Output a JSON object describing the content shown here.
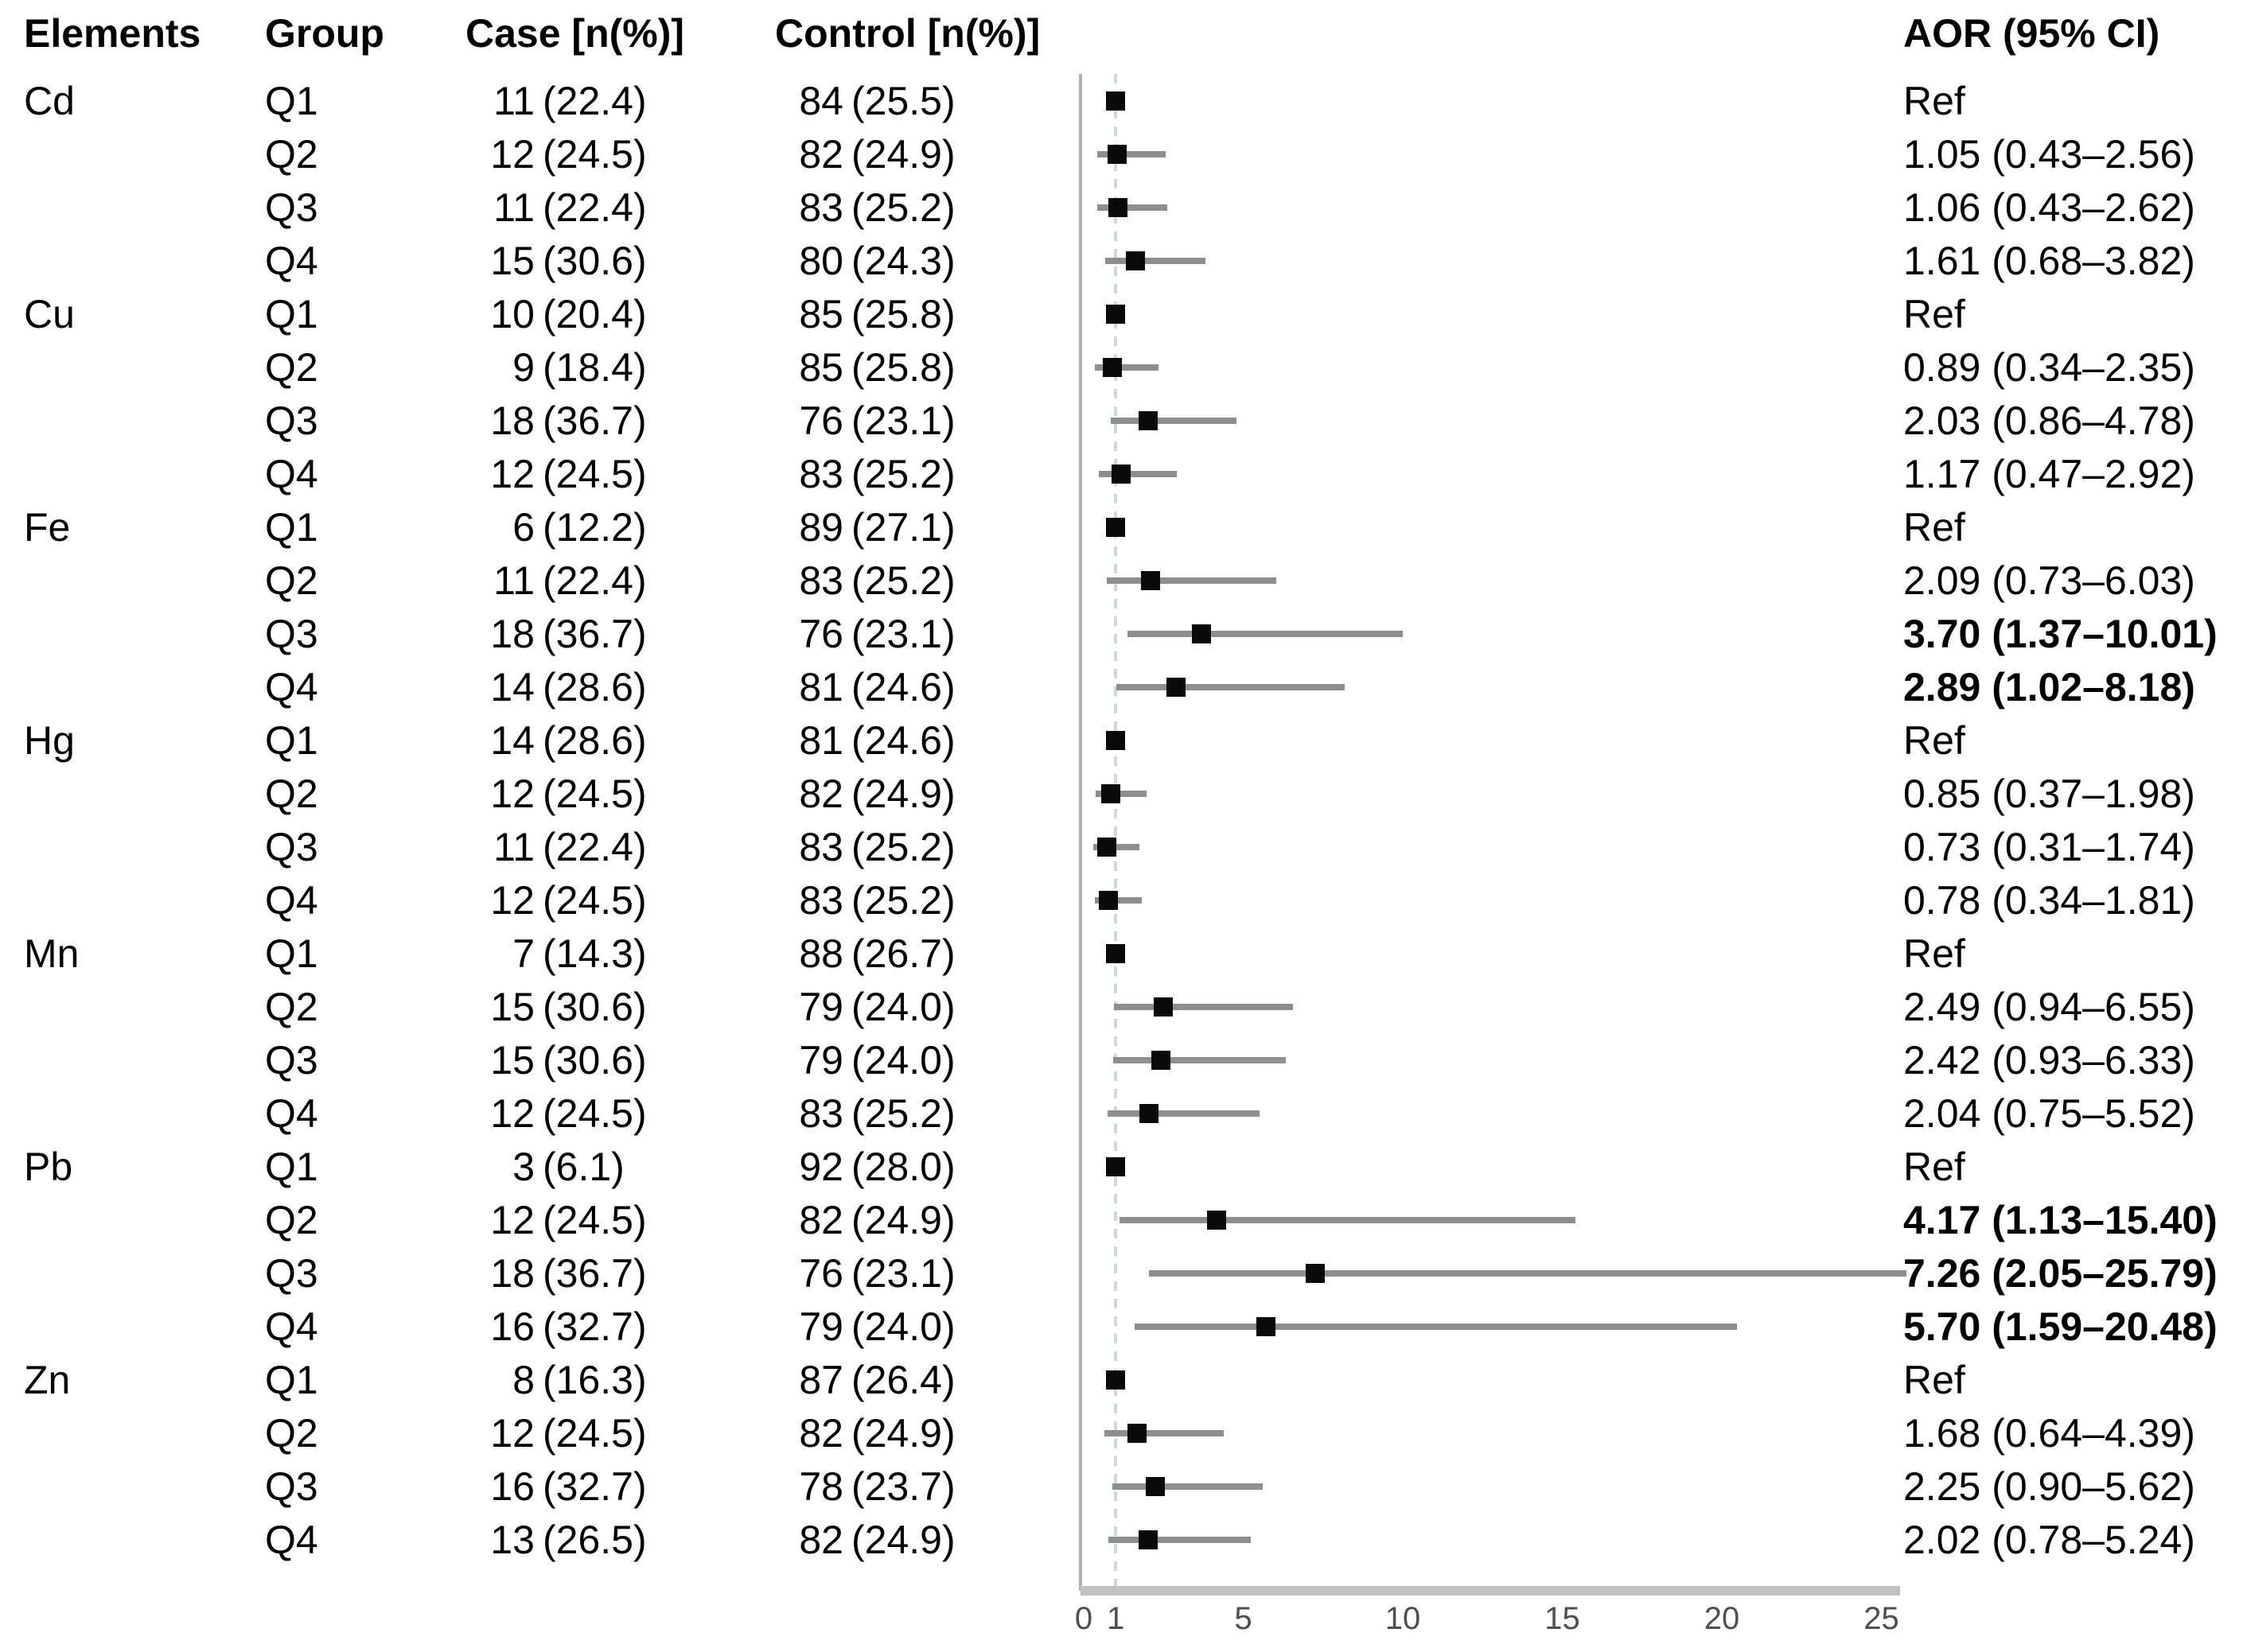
{
  "headers": {
    "elements": "Elements",
    "group": "Group",
    "case": "Case [n(%)]",
    "control": "Control [n(%)]",
    "aor": "AOR (95% CI)"
  },
  "colors": {
    "marker": "#0a0a0a",
    "ci_line": "#8e8e8e",
    "axis_spine": "#b0b0b0",
    "axis_bar": "#c2c2c2",
    "reference_line": "#ccd8da",
    "tick_text": "#4f4f4f",
    "text": "#000000",
    "background": "#ffffff"
  },
  "chart_data": {
    "type": "forest",
    "title": "",
    "xlabel": "",
    "x_axis": {
      "scale": "linear",
      "range": [
        0,
        25.6
      ],
      "tick_values": [
        0,
        1,
        5,
        10,
        15,
        20,
        25
      ],
      "tick_labels": [
        "0",
        "1",
        "5",
        "10",
        "15",
        "20",
        "25"
      ],
      "reference_line_value": 1,
      "grid": false
    },
    "legend": null,
    "columns": [
      "Elements",
      "Group",
      "Case [n(%)]",
      "Control [n(%)]",
      "AOR (95% CI)"
    ],
    "rows": [
      {
        "element": "Cd",
        "group": "Q1",
        "case_n": "11",
        "case_pct": "(22.4)",
        "control_n": "84",
        "control_pct": "(25.5)",
        "aor_label": "Ref",
        "aor": 1.0,
        "ci_low": null,
        "ci_high": null,
        "bold": false
      },
      {
        "element": "",
        "group": "Q2",
        "case_n": "12",
        "case_pct": "(24.5)",
        "control_n": "82",
        "control_pct": "(24.9)",
        "aor_label": "1.05 (0.43–2.56)",
        "aor": 1.05,
        "ci_low": 0.43,
        "ci_high": 2.56,
        "bold": false
      },
      {
        "element": "",
        "group": "Q3",
        "case_n": "11",
        "case_pct": "(22.4)",
        "control_n": "83",
        "control_pct": "(25.2)",
        "aor_label": "1.06 (0.43–2.62)",
        "aor": 1.06,
        "ci_low": 0.43,
        "ci_high": 2.62,
        "bold": false
      },
      {
        "element": "",
        "group": "Q4",
        "case_n": "15",
        "case_pct": "(30.6)",
        "control_n": "80",
        "control_pct": "(24.3)",
        "aor_label": "1.61 (0.68–3.82)",
        "aor": 1.61,
        "ci_low": 0.68,
        "ci_high": 3.82,
        "bold": false
      },
      {
        "element": "Cu",
        "group": "Q1",
        "case_n": "10",
        "case_pct": "(20.4)",
        "control_n": "85",
        "control_pct": "(25.8)",
        "aor_label": "Ref",
        "aor": 1.0,
        "ci_low": null,
        "ci_high": null,
        "bold": false
      },
      {
        "element": "",
        "group": "Q2",
        "case_n": "9",
        "case_pct": "(18.4)",
        "control_n": "85",
        "control_pct": "(25.8)",
        "aor_label": "0.89 (0.34–2.35)",
        "aor": 0.89,
        "ci_low": 0.34,
        "ci_high": 2.35,
        "bold": false
      },
      {
        "element": "",
        "group": "Q3",
        "case_n": "18",
        "case_pct": "(36.7)",
        "control_n": "76",
        "control_pct": "(23.1)",
        "aor_label": "2.03 (0.86–4.78)",
        "aor": 2.03,
        "ci_low": 0.86,
        "ci_high": 4.78,
        "bold": false
      },
      {
        "element": "",
        "group": "Q4",
        "case_n": "12",
        "case_pct": "(24.5)",
        "control_n": "83",
        "control_pct": "(25.2)",
        "aor_label": "1.17 (0.47–2.92)",
        "aor": 1.17,
        "ci_low": 0.47,
        "ci_high": 2.92,
        "bold": false
      },
      {
        "element": "Fe",
        "group": "Q1",
        "case_n": "6",
        "case_pct": "(12.2)",
        "control_n": "89",
        "control_pct": "(27.1)",
        "aor_label": "Ref",
        "aor": 1.0,
        "ci_low": null,
        "ci_high": null,
        "bold": false
      },
      {
        "element": "",
        "group": "Q2",
        "case_n": "11",
        "case_pct": "(22.4)",
        "control_n": "83",
        "control_pct": "(25.2)",
        "aor_label": "2.09 (0.73–6.03)",
        "aor": 2.09,
        "ci_low": 0.73,
        "ci_high": 6.03,
        "bold": false
      },
      {
        "element": "",
        "group": "Q3",
        "case_n": "18",
        "case_pct": "(36.7)",
        "control_n": "76",
        "control_pct": "(23.1)",
        "aor_label": "3.70 (1.37–10.01)",
        "aor": 3.7,
        "ci_low": 1.37,
        "ci_high": 10.01,
        "bold": true
      },
      {
        "element": "",
        "group": "Q4",
        "case_n": "14",
        "case_pct": "(28.6)",
        "control_n": "81",
        "control_pct": "(24.6)",
        "aor_label": "2.89 (1.02–8.18)",
        "aor": 2.89,
        "ci_low": 1.02,
        "ci_high": 8.18,
        "bold": true
      },
      {
        "element": "Hg",
        "group": "Q1",
        "case_n": "14",
        "case_pct": "(28.6)",
        "control_n": "81",
        "control_pct": "(24.6)",
        "aor_label": "Ref",
        "aor": 1.0,
        "ci_low": null,
        "ci_high": null,
        "bold": false
      },
      {
        "element": "",
        "group": "Q2",
        "case_n": "12",
        "case_pct": "(24.5)",
        "control_n": "82",
        "control_pct": "(24.9)",
        "aor_label": "0.85 (0.37–1.98)",
        "aor": 0.85,
        "ci_low": 0.37,
        "ci_high": 1.98,
        "bold": false
      },
      {
        "element": "",
        "group": "Q3",
        "case_n": "11",
        "case_pct": "(22.4)",
        "control_n": "83",
        "control_pct": "(25.2)",
        "aor_label": "0.73 (0.31–1.74)",
        "aor": 0.73,
        "ci_low": 0.31,
        "ci_high": 1.74,
        "bold": false
      },
      {
        "element": "",
        "group": "Q4",
        "case_n": "12",
        "case_pct": "(24.5)",
        "control_n": "83",
        "control_pct": "(25.2)",
        "aor_label": "0.78 (0.34–1.81)",
        "aor": 0.78,
        "ci_low": 0.34,
        "ci_high": 1.81,
        "bold": false
      },
      {
        "element": "Mn",
        "group": "Q1",
        "case_n": "7",
        "case_pct": "(14.3)",
        "control_n": "88",
        "control_pct": "(26.7)",
        "aor_label": "Ref",
        "aor": 1.0,
        "ci_low": null,
        "ci_high": null,
        "bold": false
      },
      {
        "element": "",
        "group": "Q2",
        "case_n": "15",
        "case_pct": "(30.6)",
        "control_n": "79",
        "control_pct": "(24.0)",
        "aor_label": "2.49 (0.94–6.55)",
        "aor": 2.49,
        "ci_low": 0.94,
        "ci_high": 6.55,
        "bold": false
      },
      {
        "element": "",
        "group": "Q3",
        "case_n": "15",
        "case_pct": "(30.6)",
        "control_n": "79",
        "control_pct": "(24.0)",
        "aor_label": "2.42 (0.93–6.33)",
        "aor": 2.42,
        "ci_low": 0.93,
        "ci_high": 6.33,
        "bold": false
      },
      {
        "element": "",
        "group": "Q4",
        "case_n": "12",
        "case_pct": "(24.5)",
        "control_n": "83",
        "control_pct": "(25.2)",
        "aor_label": "2.04 (0.75–5.52)",
        "aor": 2.04,
        "ci_low": 0.75,
        "ci_high": 5.52,
        "bold": false
      },
      {
        "element": "Pb",
        "group": "Q1",
        "case_n": "3",
        "case_pct": "(6.1)",
        "control_n": "92",
        "control_pct": "(28.0)",
        "aor_label": "Ref",
        "aor": 1.0,
        "ci_low": null,
        "ci_high": null,
        "bold": false
      },
      {
        "element": "",
        "group": "Q2",
        "case_n": "12",
        "case_pct": "(24.5)",
        "control_n": "82",
        "control_pct": "(24.9)",
        "aor_label": "4.17 (1.13–15.40)",
        "aor": 4.17,
        "ci_low": 1.13,
        "ci_high": 15.4,
        "bold": true
      },
      {
        "element": "",
        "group": "Q3",
        "case_n": "18",
        "case_pct": "(36.7)",
        "control_n": "76",
        "control_pct": "(23.1)",
        "aor_label": "7.26 (2.05–25.79)",
        "aor": 7.26,
        "ci_low": 2.05,
        "ci_high": 25.79,
        "bold": true
      },
      {
        "element": "",
        "group": "Q4",
        "case_n": "16",
        "case_pct": "(32.7)",
        "control_n": "79",
        "control_pct": "(24.0)",
        "aor_label": "5.70 (1.59–20.48)",
        "aor": 5.7,
        "ci_low": 1.59,
        "ci_high": 20.48,
        "bold": true
      },
      {
        "element": "Zn",
        "group": "Q1",
        "case_n": "8",
        "case_pct": "(16.3)",
        "control_n": "87",
        "control_pct": "(26.4)",
        "aor_label": "Ref",
        "aor": 1.0,
        "ci_low": null,
        "ci_high": null,
        "bold": false
      },
      {
        "element": "",
        "group": "Q2",
        "case_n": "12",
        "case_pct": "(24.5)",
        "control_n": "82",
        "control_pct": "(24.9)",
        "aor_label": "1.68 (0.64–4.39)",
        "aor": 1.68,
        "ci_low": 0.64,
        "ci_high": 4.39,
        "bold": false
      },
      {
        "element": "",
        "group": "Q3",
        "case_n": "16",
        "case_pct": "(32.7)",
        "control_n": "78",
        "control_pct": "(23.7)",
        "aor_label": "2.25 (0.90–5.62)",
        "aor": 2.25,
        "ci_low": 0.9,
        "ci_high": 5.62,
        "bold": false
      },
      {
        "element": "",
        "group": "Q4",
        "case_n": "13",
        "case_pct": "(26.5)",
        "control_n": "82",
        "control_pct": "(24.9)",
        "aor_label": "2.02 (0.78–5.24)",
        "aor": 2.02,
        "ci_low": 0.78,
        "ci_high": 5.24,
        "bold": false
      }
    ]
  }
}
